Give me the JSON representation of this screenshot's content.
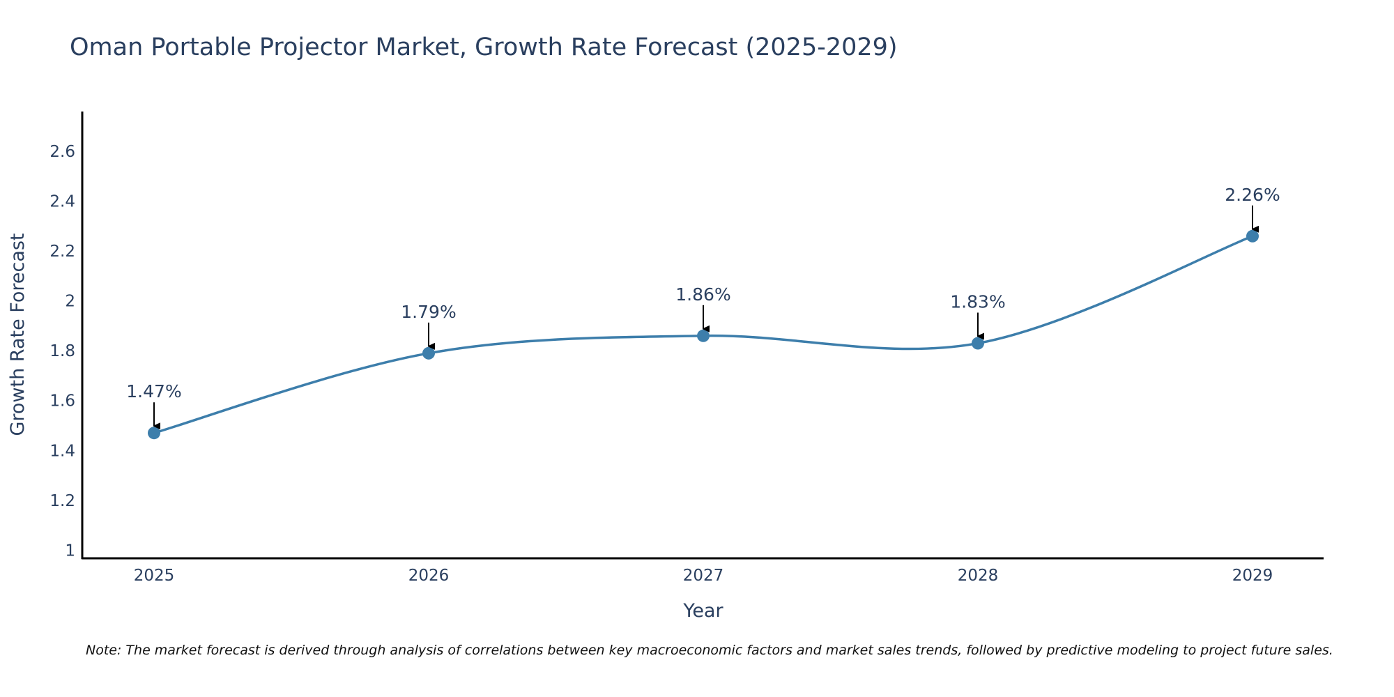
{
  "colors": {
    "line": "#3d7eab",
    "marker": "#3d7eab",
    "axis": "#000000",
    "text": "#2a3f5f",
    "arrow": "#000000"
  },
  "chart_data": {
    "type": "line",
    "title": "Oman Portable Projector Market, Growth Rate Forecast (2025-2029)",
    "xlabel": "Year",
    "ylabel": "Growth Rate Forecast",
    "categories": [
      "2025",
      "2026",
      "2027",
      "2028",
      "2029"
    ],
    "series": [
      {
        "name": "Growth Rate Forecast",
        "values": [
          1.47,
          1.79,
          1.86,
          1.83,
          2.26
        ],
        "labels": [
          "1.47%",
          "1.79%",
          "1.86%",
          "1.83%",
          "2.26%"
        ]
      }
    ],
    "ylim": [
      0.97,
      2.76
    ],
    "yticks": [
      1,
      1.2,
      1.4,
      1.6,
      1.8,
      2,
      2.2,
      2.4,
      2.6
    ],
    "ytick_labels": [
      "1",
      "1.2",
      "1.4",
      "1.6",
      "1.8",
      "2",
      "2.2",
      "2.4",
      "2.6"
    ],
    "grid": false,
    "line_shape": "spline",
    "note": "Note: The market forecast is derived through analysis of correlations between key macroeconomic factors and market sales trends, followed by predictive modeling to project future sales."
  }
}
